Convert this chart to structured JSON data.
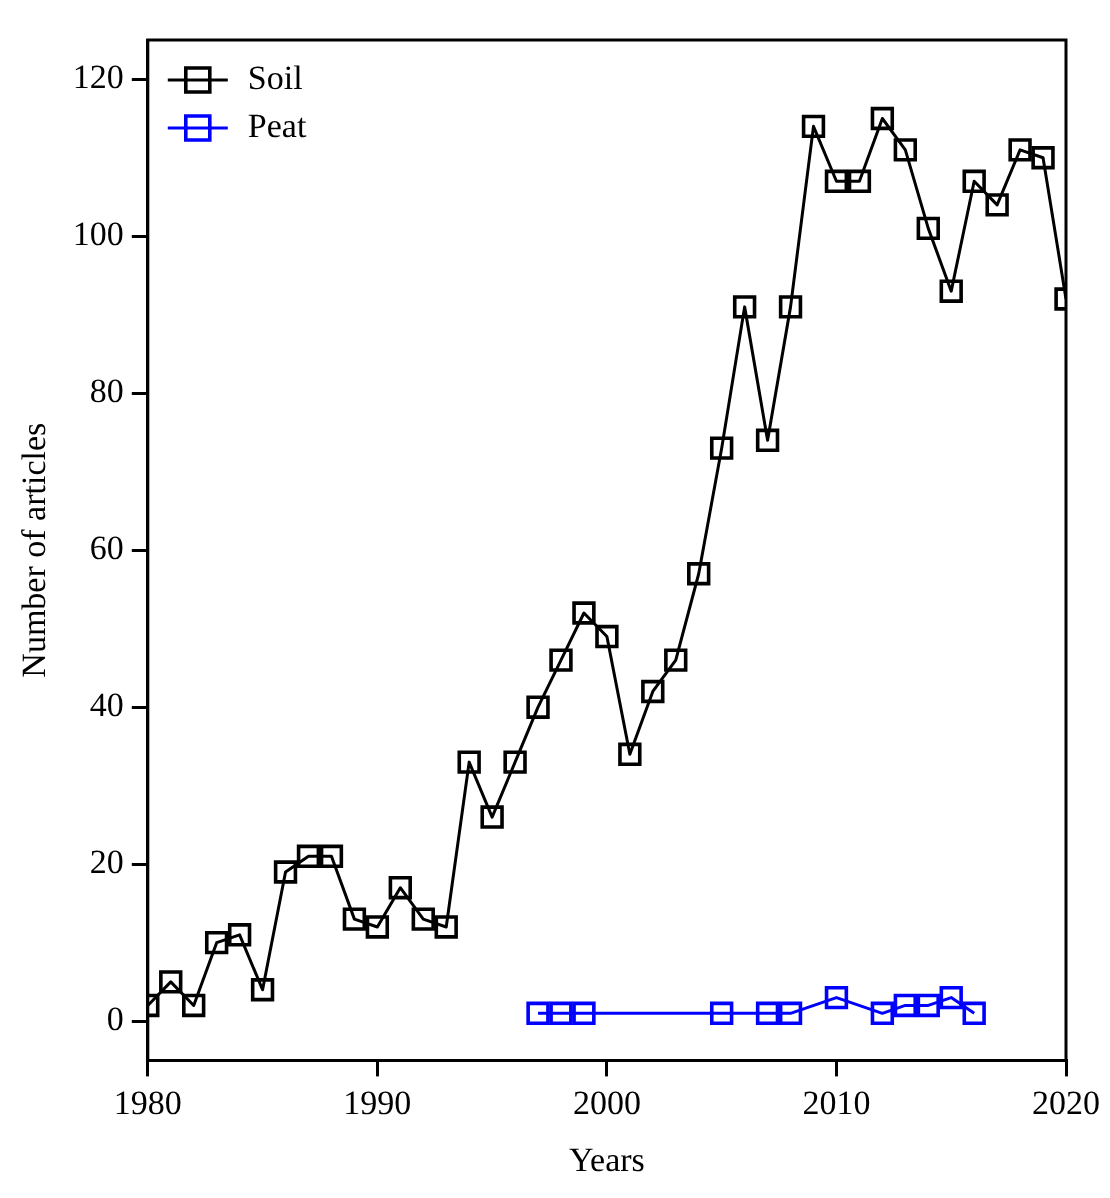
{
  "chart_data": {
    "type": "line",
    "xlabel": "Years",
    "ylabel": "Number of articles",
    "xlim": [
      1980,
      2020
    ],
    "xticks": [
      1980,
      1990,
      2000,
      2010,
      2020
    ],
    "ylim": [
      -5,
      125
    ],
    "yticks": [
      0,
      20,
      40,
      60,
      80,
      100,
      120
    ],
    "grid": false,
    "legend": "top left",
    "marker": "square",
    "line_style": "solid",
    "series": [
      {
        "name": "Soil",
        "color": "#000000",
        "x": [
          1980,
          1981,
          1982,
          1983,
          1984,
          1985,
          1986,
          1987,
          1988,
          1989,
          1990,
          1991,
          1992,
          1993,
          1994,
          1995,
          1996,
          1997,
          1998,
          1999,
          2000,
          2001,
          2002,
          2003,
          2004,
          2005,
          2006,
          2007,
          2008,
          2009,
          2010,
          2011,
          2012,
          2013,
          2014,
          2015,
          2016,
          2017,
          2018,
          2019,
          2020
        ],
        "values": [
          2,
          5,
          2,
          10,
          11,
          4,
          19,
          21,
          21,
          13,
          12,
          17,
          13,
          12,
          33,
          26,
          33,
          40,
          46,
          52,
          49,
          34,
          42,
          46,
          57,
          73,
          91,
          74,
          91,
          114,
          107,
          107,
          115,
          111,
          101,
          93,
          107,
          104,
          111,
          110,
          92
        ]
      },
      {
        "name": "Peat",
        "color": "#0000ff",
        "x": [
          1997,
          1998,
          1999,
          2005,
          2007,
          2008,
          2010,
          2012,
          2013,
          2014,
          2015,
          2016
        ],
        "values": [
          1,
          1,
          1,
          1,
          1,
          1,
          3,
          1,
          2,
          2,
          3,
          1
        ]
      }
    ]
  }
}
